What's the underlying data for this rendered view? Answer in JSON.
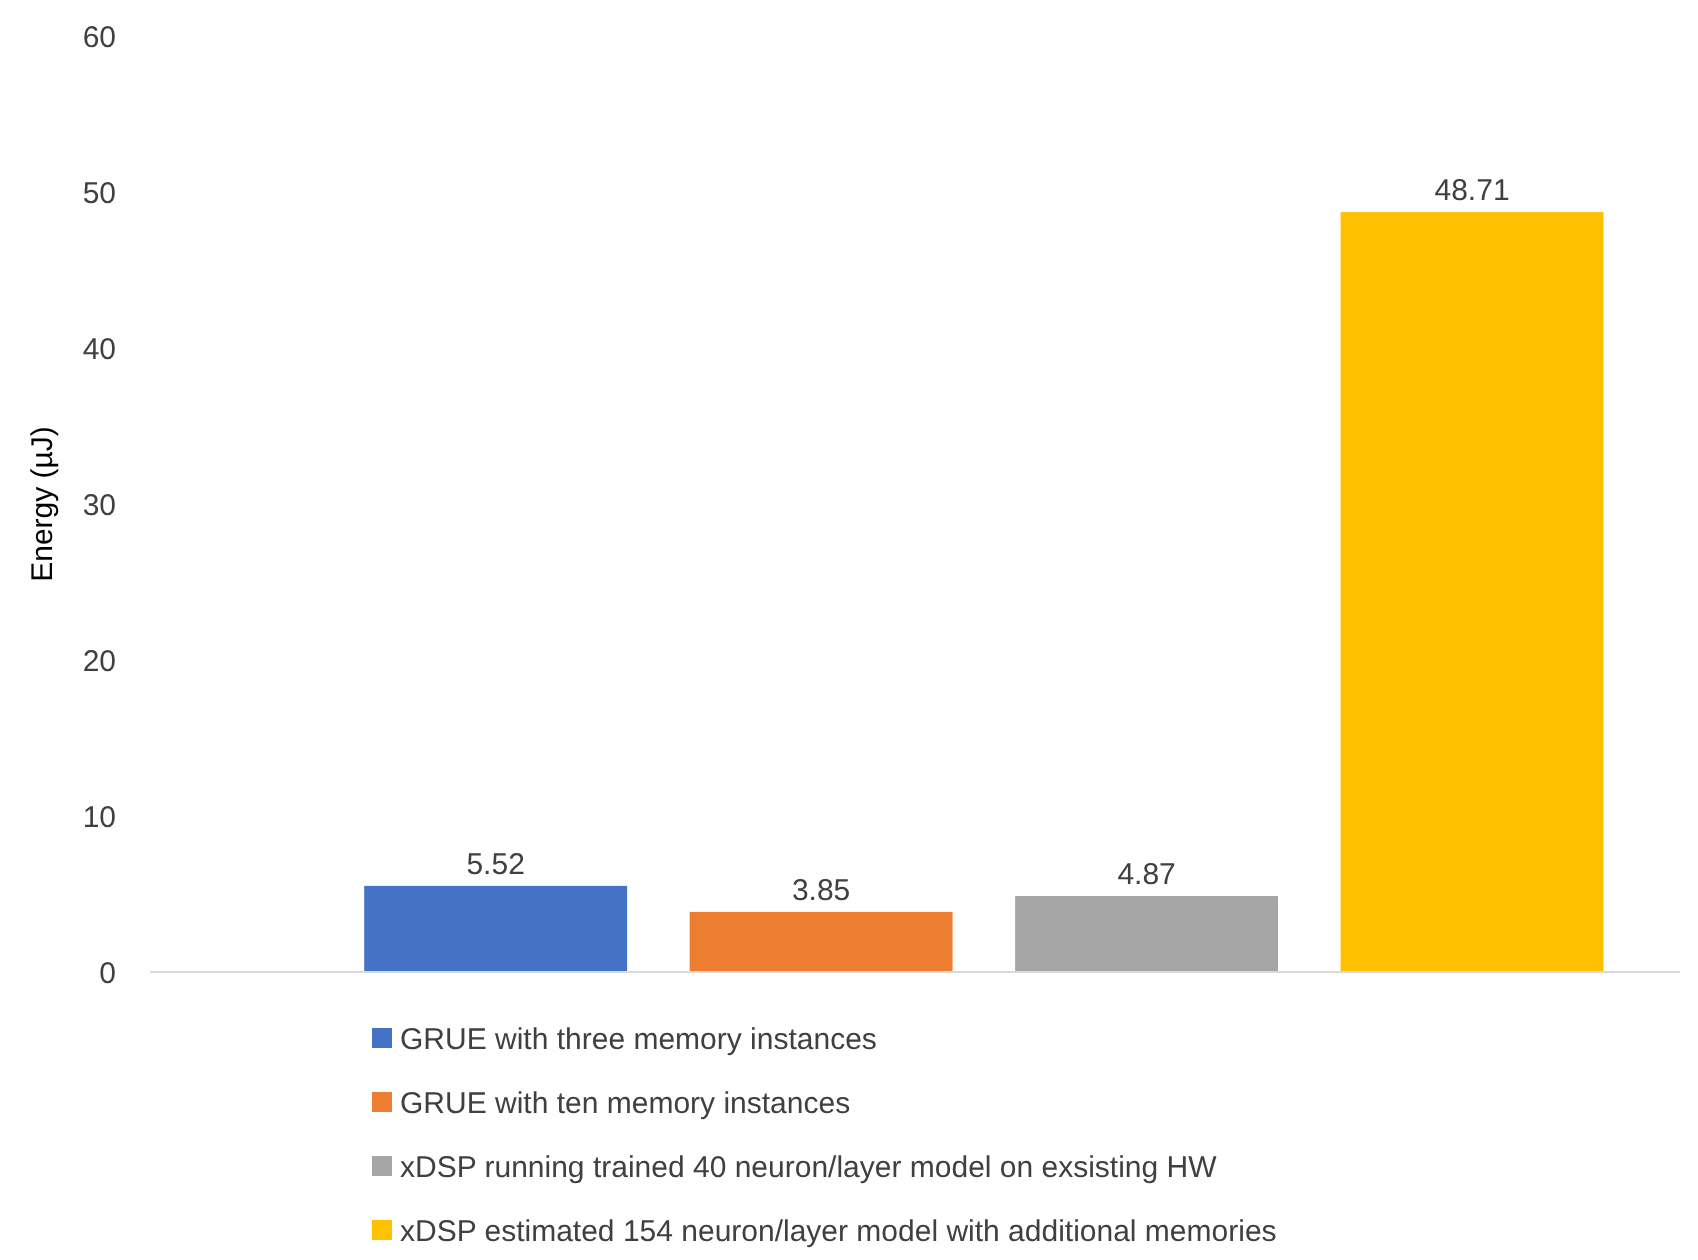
{
  "chart_data": {
    "type": "bar",
    "ylabel": "Energy (µJ)",
    "categories": [
      null
    ],
    "series": [
      {
        "name": "GRUE with three memory instances",
        "color": "#4472c4",
        "values": [
          5.52
        ]
      },
      {
        "name": "GRUE with ten memory instances",
        "color": "#ed7d31",
        "values": [
          3.85
        ]
      },
      {
        "name": "xDSP running trained 40 neuron/layer model on exsisting HW",
        "color": "#a5a5a5",
        "values": [
          4.87
        ]
      },
      {
        "name": "xDSP estimated 154 neuron/layer model with additional memories",
        "color": "#ffc000",
        "values": [
          48.71
        ]
      }
    ],
    "ylim": [
      0,
      60
    ],
    "yticks": [
      0,
      10,
      20,
      30,
      40,
      50,
      60
    ],
    "data_labels": true,
    "legend": "bottom",
    "grid": false
  }
}
